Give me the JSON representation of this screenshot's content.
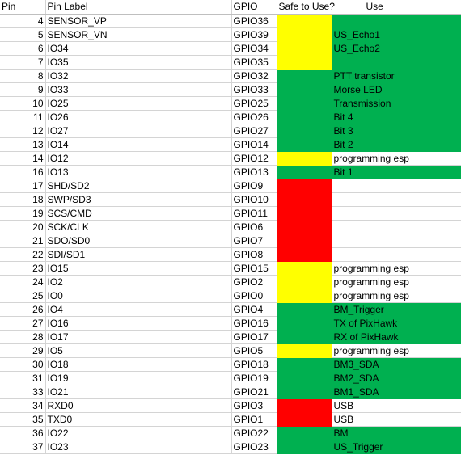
{
  "headers": {
    "pin": "Pin",
    "label": "Pin Label",
    "gpio": "GPIO",
    "safe": "Safe to Use?",
    "use": "Use"
  },
  "colors": {
    "green": "#00b050",
    "yellow": "#ffff00",
    "red": "#ff0000"
  },
  "rows": [
    {
      "pin": "4",
      "label": "SENSOR_VP",
      "gpio": "GPIO36",
      "safe": "yellow",
      "use": "",
      "use_color": "green"
    },
    {
      "pin": "5",
      "label": "SENSOR_VN",
      "gpio": "GPIO39",
      "safe": "yellow",
      "use": "US_Echo1",
      "use_color": "green"
    },
    {
      "pin": "6",
      "label": "IO34",
      "gpio": "GPIO34",
      "safe": "yellow",
      "use": "US_Echo2",
      "use_color": "green"
    },
    {
      "pin": "7",
      "label": "IO35",
      "gpio": "GPIO35",
      "safe": "yellow",
      "use": "",
      "use_color": "green"
    },
    {
      "pin": "8",
      "label": "IO32",
      "gpio": "GPIO32",
      "safe": "green",
      "use": "PTT transistor",
      "use_color": "green"
    },
    {
      "pin": "9",
      "label": "IO33",
      "gpio": "GPIO33",
      "safe": "green",
      "use": "Morse LED",
      "use_color": "green"
    },
    {
      "pin": "10",
      "label": "IO25",
      "gpio": "GPIO25",
      "safe": "green",
      "use": "Transmission",
      "use_color": "green"
    },
    {
      "pin": "11",
      "label": "IO26",
      "gpio": "GPIO26",
      "safe": "green",
      "use": "Bit 4",
      "use_color": "green"
    },
    {
      "pin": "12",
      "label": "IO27",
      "gpio": "GPIO27",
      "safe": "green",
      "use": "Bit 3",
      "use_color": "green"
    },
    {
      "pin": "13",
      "label": "IO14",
      "gpio": "GPIO14",
      "safe": "green",
      "use": "Bit 2",
      "use_color": "green"
    },
    {
      "pin": "14",
      "label": "IO12",
      "gpio": "GPIO12",
      "safe": "yellow",
      "use": "programming esp",
      "use_color": "none"
    },
    {
      "pin": "16",
      "label": "IO13",
      "gpio": "GPIO13",
      "safe": "green",
      "use": "Bit 1",
      "use_color": "green"
    },
    {
      "pin": "17",
      "label": "SHD/SD2",
      "gpio": "GPIO9",
      "safe": "red",
      "use": "",
      "use_color": "none"
    },
    {
      "pin": "18",
      "label": "SWP/SD3",
      "gpio": "GPIO10",
      "safe": "red",
      "use": "",
      "use_color": "none"
    },
    {
      "pin": "19",
      "label": "SCS/CMD",
      "gpio": "GPIO11",
      "safe": "red",
      "use": "",
      "use_color": "none"
    },
    {
      "pin": "20",
      "label": "SCK/CLK",
      "gpio": "GPIO6",
      "safe": "red",
      "use": "",
      "use_color": "none"
    },
    {
      "pin": "21",
      "label": "SDO/SD0",
      "gpio": "GPIO7",
      "safe": "red",
      "use": "",
      "use_color": "none"
    },
    {
      "pin": "22",
      "label": "SDI/SD1",
      "gpio": "GPIO8",
      "safe": "red",
      "use": "",
      "use_color": "none"
    },
    {
      "pin": "23",
      "label": "IO15",
      "gpio": "GPIO15",
      "safe": "yellow",
      "use": "programming esp",
      "use_color": "none"
    },
    {
      "pin": "24",
      "label": "IO2",
      "gpio": "GPIO2",
      "safe": "yellow",
      "use": "programming esp",
      "use_color": "none"
    },
    {
      "pin": "25",
      "label": "IO0",
      "gpio": "GPIO0",
      "safe": "yellow",
      "use": "programming esp",
      "use_color": "none"
    },
    {
      "pin": "26",
      "label": "IO4",
      "gpio": "GPIO4",
      "safe": "green",
      "use": "BM_Trigger",
      "use_color": "green"
    },
    {
      "pin": "27",
      "label": "IO16",
      "gpio": "GPIO16",
      "safe": "green",
      "use": "TX of PixHawk",
      "use_color": "green"
    },
    {
      "pin": "28",
      "label": "IO17",
      "gpio": "GPIO17",
      "safe": "green",
      "use": "RX of PixHawk",
      "use_color": "green"
    },
    {
      "pin": "29",
      "label": "IO5",
      "gpio": "GPIO5",
      "safe": "yellow",
      "use": "programming esp",
      "use_color": "none"
    },
    {
      "pin": "30",
      "label": "IO18",
      "gpio": "GPIO18",
      "safe": "green",
      "use": "BM3_SDA",
      "use_color": "green"
    },
    {
      "pin": "31",
      "label": "IO19",
      "gpio": "GPIO19",
      "safe": "green",
      "use": "BM2_SDA",
      "use_color": "green"
    },
    {
      "pin": "33",
      "label": "IO21",
      "gpio": "GPIO21",
      "safe": "green",
      "use": "BM1_SDA",
      "use_color": "green"
    },
    {
      "pin": "34",
      "label": "RXD0",
      "gpio": "GPIO3",
      "safe": "red",
      "use": "USB",
      "use_color": "none"
    },
    {
      "pin": "35",
      "label": "TXD0",
      "gpio": "GPIO1",
      "safe": "red",
      "use": "USB",
      "use_color": "none"
    },
    {
      "pin": "36",
      "label": "IO22",
      "gpio": "GPIO22",
      "safe": "green",
      "use": "BM",
      "use_color": "green"
    },
    {
      "pin": "37",
      "label": "IO23",
      "gpio": "GPIO23",
      "safe": "green",
      "use": "US_Trigger",
      "use_color": "green"
    }
  ]
}
